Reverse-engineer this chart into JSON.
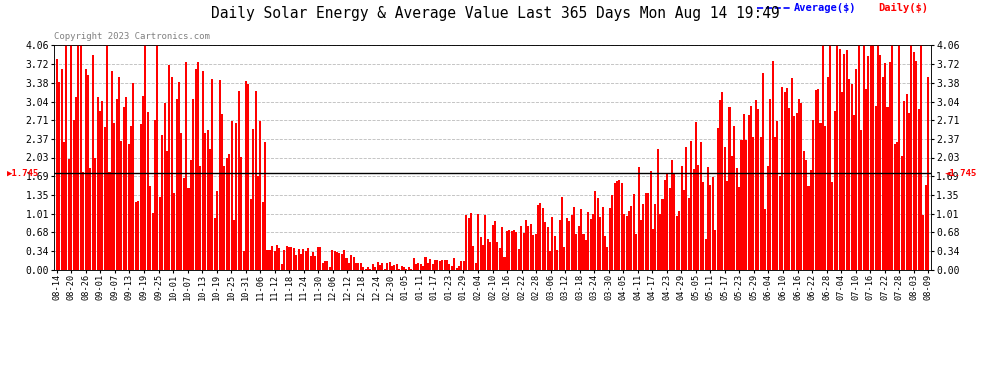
{
  "title": "Daily Solar Energy & Average Value Last 365 Days Mon Aug 14 19:49",
  "copyright": "Copyright 2023 Cartronics.com",
  "average_label": "Average($)",
  "daily_label": "Daily($)",
  "average_color": "blue",
  "daily_color": "red",
  "bar_color": "red",
  "avg_line_color": "black",
  "avg_value": 1.745,
  "avg_label_text": "1.745",
  "y_max": 4.06,
  "y_min": 0.0,
  "y_ticks": [
    0.0,
    0.34,
    0.68,
    1.01,
    1.35,
    1.69,
    2.03,
    2.37,
    2.71,
    3.04,
    3.38,
    3.72,
    4.06
  ],
  "background_color": "white",
  "grid_color": "#bbbbbb",
  "x_labels": [
    "08-14",
    "08-20",
    "08-26",
    "09-01",
    "09-07",
    "09-13",
    "09-19",
    "09-25",
    "10-01",
    "10-07",
    "10-13",
    "10-19",
    "10-25",
    "10-31",
    "11-06",
    "11-12",
    "11-18",
    "11-24",
    "11-30",
    "12-06",
    "12-12",
    "12-18",
    "12-24",
    "12-30",
    "01-05",
    "01-11",
    "01-17",
    "01-23",
    "01-29",
    "02-04",
    "02-10",
    "02-16",
    "02-22",
    "02-28",
    "03-06",
    "03-12",
    "03-18",
    "03-24",
    "03-30",
    "04-05",
    "04-11",
    "04-17",
    "04-23",
    "04-29",
    "05-05",
    "05-11",
    "05-17",
    "05-23",
    "05-29",
    "06-04",
    "06-10",
    "06-16",
    "06-22",
    "06-28",
    "07-04",
    "07-10",
    "07-16",
    "07-22",
    "07-28",
    "08-03",
    "08-09"
  ],
  "n_bars": 365,
  "seed": 42
}
